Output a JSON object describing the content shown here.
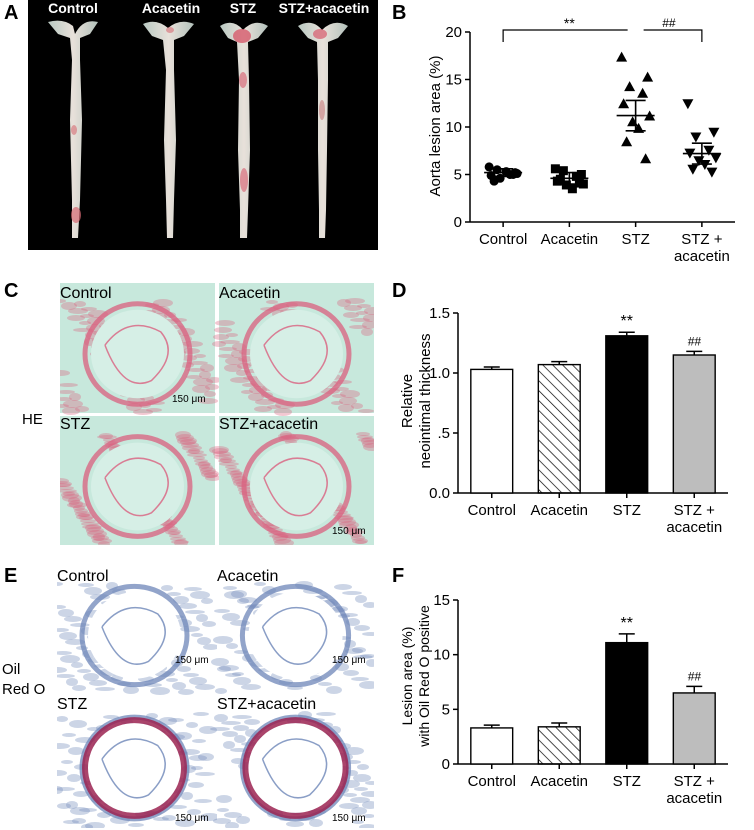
{
  "panel_A": {
    "label": "A",
    "captions": [
      "Control",
      "Acacetin",
      "STZ",
      "STZ+acacetin"
    ]
  },
  "panel_C": {
    "label": "C",
    "stain": "HE",
    "captions": [
      "Control",
      "Acacetin",
      "STZ",
      "STZ+acacetin"
    ],
    "scale_bar": "150 μm"
  },
  "panel_E": {
    "label": "E",
    "stain_line1": "Oil",
    "stain_line2": "Red O",
    "captions": [
      "Control",
      "Acacetin",
      "STZ",
      "STZ+acacetin"
    ],
    "scale_bar": "150 μm"
  },
  "chart_data": [
    {
      "panel": "B",
      "type": "scatter",
      "ylabel": "Aorta lesion area (%)",
      "ylim": [
        0,
        20
      ],
      "yticks": [
        "0",
        "5",
        "10",
        "15",
        "20"
      ],
      "categories": [
        "Control",
        "Acacetin",
        "STZ",
        "STZ +\nacacetin"
      ],
      "markers": [
        "circle",
        "square",
        "triangle-up",
        "triangle-down"
      ],
      "points": [
        [
          5.8,
          5.2,
          5.5,
          5.0,
          4.9,
          5.1,
          4.6,
          5.3,
          4.3,
          5.0
        ],
        [
          5.6,
          5.0,
          5.4,
          4.8,
          4.3,
          4.0,
          3.9,
          3.5,
          4.5,
          4.1
        ],
        [
          17.3,
          15.2,
          14.2,
          13.5,
          12.4,
          11.1,
          10.5,
          9.8,
          8.4,
          6.6
        ],
        [
          12.5,
          9.5,
          9.0,
          7.6,
          7.3,
          6.8,
          6.5,
          6.1,
          5.6,
          5.3
        ]
      ],
      "mean": [
        5.2,
        4.6,
        11.2,
        7.2
      ],
      "sem": [
        0.4,
        0.6,
        1.6,
        1.1
      ],
      "annotations": [
        {
          "text": "**",
          "from": 0,
          "to": 2
        },
        {
          "text": "##",
          "from": 2,
          "to": 3
        }
      ]
    },
    {
      "panel": "D",
      "type": "bar",
      "ylabel_line1": "Relative",
      "ylabel_line2": "neointimal thickness",
      "ylim": [
        0,
        1.5
      ],
      "yticks": [
        "0.0",
        ".5",
        "1.0",
        "1.5"
      ],
      "categories": [
        "Control",
        "Acacetin",
        "STZ",
        "STZ +\nacacetin"
      ],
      "values": [
        1.03,
        1.07,
        1.31,
        1.15
      ],
      "errors": [
        0.02,
        0.025,
        0.03,
        0.03
      ],
      "fills": [
        "white",
        "hatch",
        "black",
        "gray"
      ],
      "sig": [
        "",
        "",
        "**",
        "##"
      ]
    },
    {
      "panel": "F",
      "type": "bar",
      "ylabel_line1": "Lesion area (%)",
      "ylabel_line2": "with Oil Red O positive",
      "ylim": [
        0,
        15
      ],
      "yticks": [
        "0",
        "5",
        "10",
        "15"
      ],
      "categories": [
        "Control",
        "Acacetin",
        "STZ",
        "STZ +\nacacetin"
      ],
      "values": [
        3.3,
        3.4,
        11.1,
        6.5
      ],
      "errors": [
        0.25,
        0.35,
        0.8,
        0.6
      ],
      "fills": [
        "white",
        "hatch",
        "black",
        "gray"
      ],
      "sig": [
        "",
        "",
        "**",
        "##"
      ]
    }
  ],
  "colors": {
    "bar_gray": "#bdbdbd",
    "bar_black": "#000000",
    "aorta_bg": "#000000",
    "he_background": "#c7e8dc",
    "he_tissue": "#d9607f",
    "oil_background": "#ffffff",
    "oil_tissue": "#6d86b8",
    "oil_lipid": "#9b2351"
  }
}
